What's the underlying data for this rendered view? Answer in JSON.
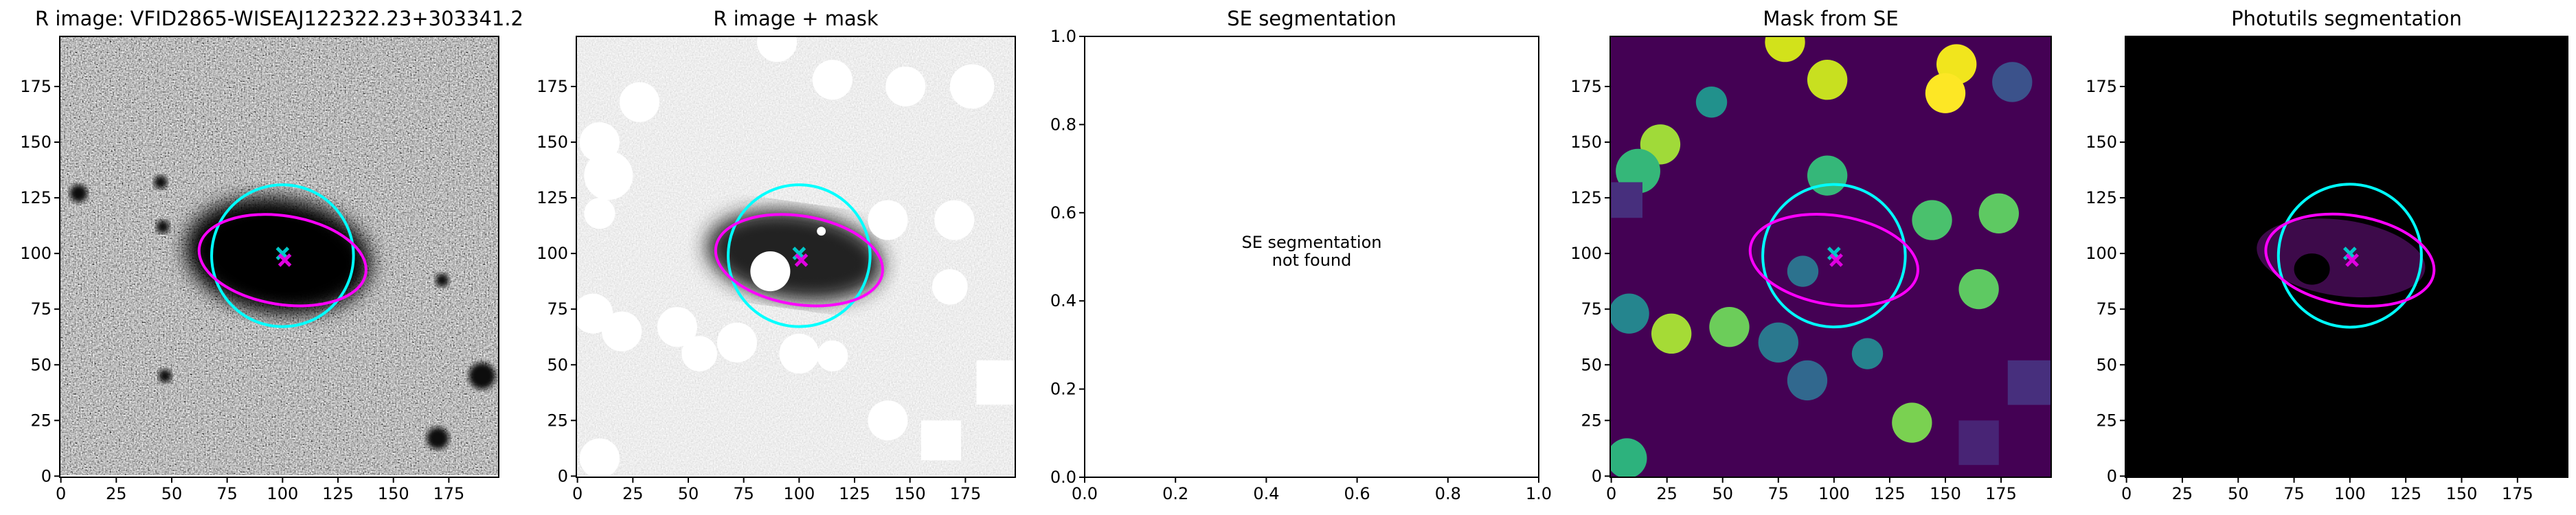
{
  "chart_data": [
    {
      "type": "image",
      "title": "R image: VFID2865-WISEAJ122322.23+303341.2",
      "cmap": "gray",
      "xlim": [
        -0.5,
        197.5
      ],
      "ylim": [
        -0.5,
        197.5
      ],
      "xticks": [
        0,
        25,
        50,
        75,
        100,
        125,
        150,
        175
      ],
      "yticks": [
        0,
        25,
        50,
        75,
        100,
        125,
        150,
        175
      ]
    },
    {
      "type": "image",
      "title": "R image + mask",
      "cmap": "gray_r",
      "xlim": [
        -0.5,
        197.5
      ],
      "ylim": [
        -0.5,
        197.5
      ],
      "xticks": [
        0,
        25,
        50,
        75,
        100,
        125,
        150,
        175
      ],
      "yticks": [
        0,
        25,
        50,
        75,
        100,
        125,
        150,
        175
      ]
    },
    {
      "type": "empty",
      "title": "SE segmentation",
      "annotation": [
        "SE segmentation",
        "not found"
      ],
      "xlim": [
        0,
        1
      ],
      "ylim": [
        0,
        1
      ],
      "xticks": [
        {
          "value": 0,
          "label": "0.0"
        },
        {
          "value": 0.2,
          "label": "0.2"
        },
        {
          "value": 0.4,
          "label": "0.4"
        },
        {
          "value": 0.6,
          "label": "0.6"
        },
        {
          "value": 0.8,
          "label": "0.8"
        },
        {
          "value": 1,
          "label": "1.0"
        }
      ],
      "yticks": [
        {
          "value": 0,
          "label": "0.0"
        },
        {
          "value": 0.2,
          "label": "0.2"
        },
        {
          "value": 0.4,
          "label": "0.4"
        },
        {
          "value": 0.6,
          "label": "0.6"
        },
        {
          "value": 0.8,
          "label": "0.8"
        },
        {
          "value": 1,
          "label": "1.0"
        }
      ]
    },
    {
      "type": "image",
      "title": "Mask from SE",
      "cmap": "viridis",
      "xlim": [
        -0.5,
        197.5
      ],
      "ylim": [
        -0.5,
        197.5
      ],
      "xticks": [
        0,
        25,
        50,
        75,
        100,
        125,
        150,
        175
      ],
      "yticks": [
        0,
        25,
        50,
        75,
        100,
        125,
        150,
        175
      ]
    },
    {
      "type": "image",
      "title": "Photutils segmentation",
      "cmap": "magma",
      "xlim": [
        -0.5,
        197.5
      ],
      "ylim": [
        -0.5,
        197.5
      ],
      "xticks": [
        0,
        25,
        50,
        75,
        100,
        125,
        150,
        175
      ],
      "yticks": [
        0,
        25,
        50,
        75,
        100,
        125,
        150,
        175
      ]
    }
  ]
}
